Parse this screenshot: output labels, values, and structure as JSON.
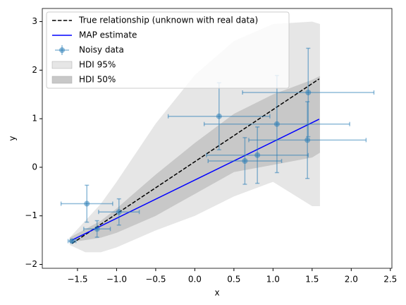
{
  "chart_data": {
    "type": "line",
    "x_label": "x",
    "y_label": "y",
    "xlim": [
      -1.95,
      2.52
    ],
    "ylim": [
      -2.08,
      3.27
    ],
    "xticks": [
      {
        "value": -1.5,
        "label": "−1.5"
      },
      {
        "value": -1.0,
        "label": "−1.0"
      },
      {
        "value": -0.5,
        "label": "−0.5"
      },
      {
        "value": 0.0,
        "label": "0.0"
      },
      0.5,
      {
        "value": 1.0,
        "label": "1.0"
      },
      1.5,
      {
        "value": 2.0,
        "label": "2.0"
      },
      2.5
    ],
    "yticks": [
      {
        "value": -2,
        "label": "−2"
      },
      {
        "value": -1,
        "label": "−1"
      },
      0,
      1,
      2,
      3
    ],
    "legend_position": "upper left",
    "series": [
      {
        "name": "True relationship (unknown with real data)",
        "type": "line",
        "color": "#000000",
        "dash": true,
        "x": [
          -1.57,
          1.59
        ],
        "values": [
          -1.57,
          1.82
        ]
      },
      {
        "name": "MAP estimate",
        "type": "line",
        "color": "#0000ff",
        "x": [
          -1.57,
          1.59
        ],
        "values": [
          -1.5,
          0.99
        ]
      },
      {
        "name": "Noisy data",
        "type": "errorbar",
        "color": "#1f77b4",
        "x": [
          -1.57,
          -1.38,
          -1.25,
          -0.97,
          0.31,
          0.64,
          0.8,
          1.05,
          1.44,
          1.45
        ],
        "values": [
          -1.52,
          -0.75,
          -1.27,
          -0.92,
          1.05,
          0.13,
          0.25,
          0.89,
          0.56,
          1.54
        ],
        "xerr": [
          0.05,
          0.33,
          0.17,
          0.26,
          0.65,
          0.47,
          0.65,
          0.93,
          0.75,
          0.84
        ],
        "yerr": [
          0.03,
          0.38,
          0.17,
          0.27,
          0.69,
          0.48,
          0.58,
          1.0,
          0.79,
          0.91
        ]
      },
      {
        "name": "HDI 95%",
        "type": "band",
        "color": "#e6e6e6",
        "x": [
          -1.6,
          -1.4,
          -1.2,
          -1.0,
          -0.5,
          0.0,
          0.5,
          1.0,
          1.5,
          1.6
        ],
        "lower": [
          -1.6,
          -1.75,
          -1.75,
          -1.65,
          -1.3,
          -1.0,
          -0.6,
          -0.3,
          -0.8,
          -0.8
        ],
        "upper": [
          -1.45,
          -1.1,
          -0.75,
          -0.3,
          0.9,
          1.9,
          2.6,
          2.95,
          3.0,
          2.95
        ]
      },
      {
        "name": "HDI 50%",
        "type": "band",
        "color": "#c8c8c8",
        "x": [
          -1.6,
          -1.2,
          -1.0,
          -0.5,
          0.0,
          0.5,
          1.0,
          1.5,
          1.6
        ],
        "lower": [
          -1.55,
          -1.45,
          -1.35,
          -1.0,
          -0.55,
          -0.1,
          0.05,
          0.2,
          0.3
        ],
        "upper": [
          -1.45,
          -1.1,
          -0.85,
          -0.15,
          0.5,
          1.1,
          1.5,
          1.8,
          1.88
        ]
      }
    ]
  }
}
